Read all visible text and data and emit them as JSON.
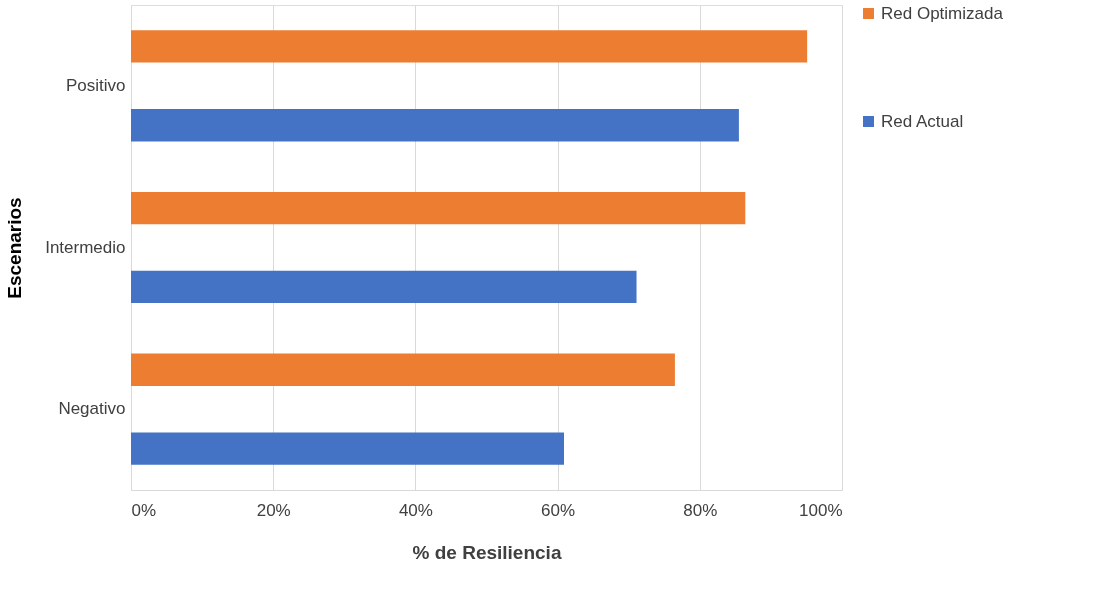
{
  "chart_data": {
    "type": "bar",
    "orientation": "horizontal",
    "xlabel": "% de Resiliencia",
    "ylabel": "Escenarios",
    "categories": [
      "Positivo",
      "Intermedio",
      "Negativo"
    ],
    "series": [
      {
        "name": "Red Optimizada",
        "color": "#ed7d31",
        "values": [
          95.1,
          86.4,
          76.5
        ]
      },
      {
        "name": "Red Actual",
        "color": "#4472c4",
        "values": [
          85.5,
          71.1,
          60.9
        ]
      }
    ],
    "xlim": [
      0,
      100
    ],
    "xticks": [
      {
        "value": 0,
        "label": "0%"
      },
      {
        "value": 20,
        "label": "20%"
      },
      {
        "value": 40,
        "label": "40%"
      },
      {
        "value": 60,
        "label": "60%"
      },
      {
        "value": 80,
        "label": "80%"
      },
      {
        "value": 100,
        "label": "100%"
      }
    ],
    "grid": "x",
    "legend": "right"
  }
}
